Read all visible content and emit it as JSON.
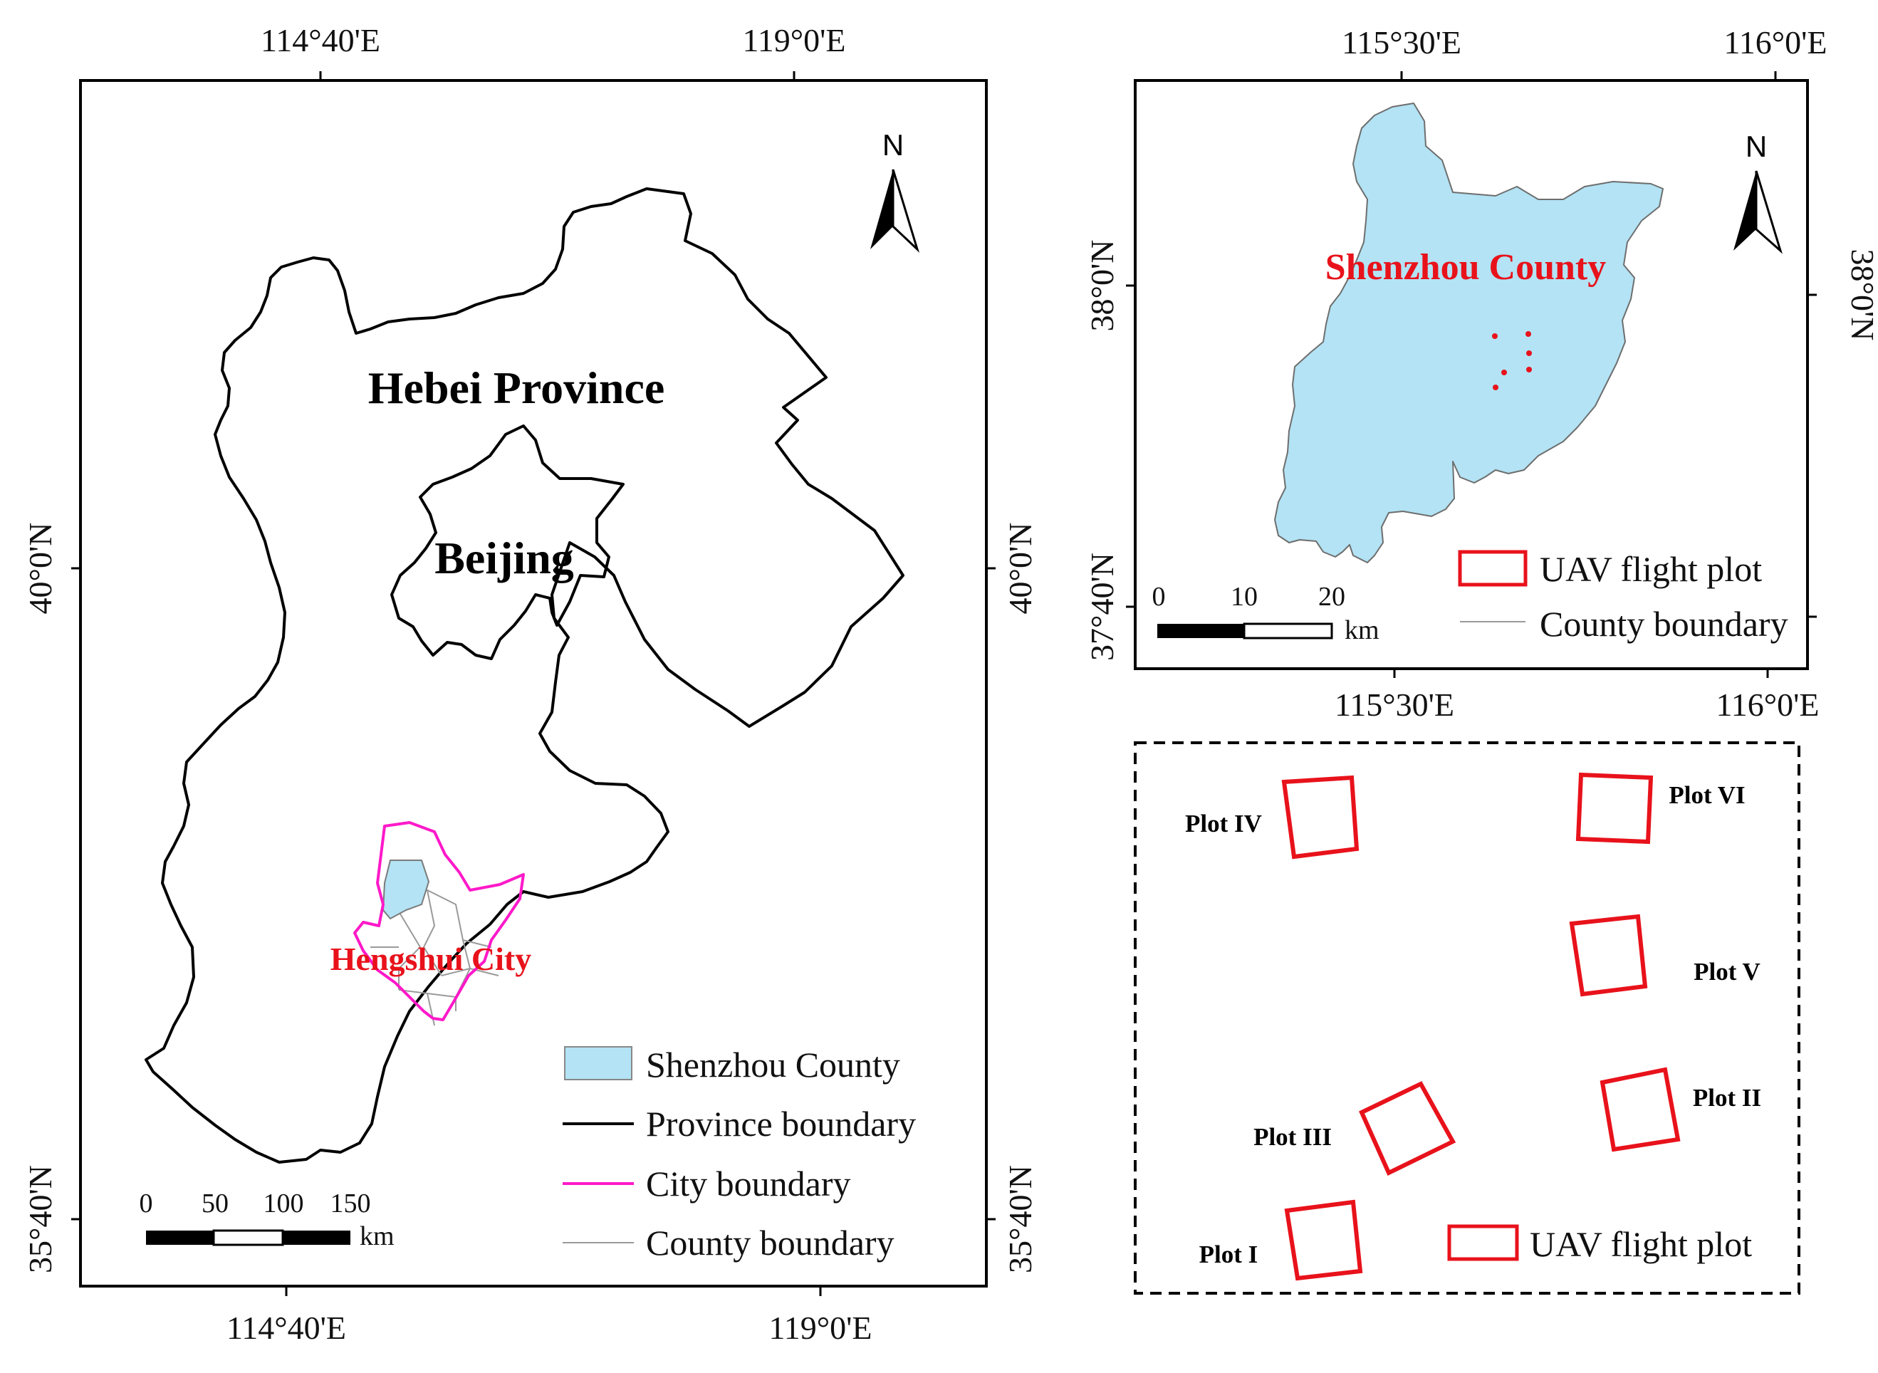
{
  "left_map": {
    "top_ticks": [
      "114°40'E",
      "119°0'E"
    ],
    "bottom_ticks": [
      "114°40'E",
      "119°0'E"
    ],
    "left_ticks": [
      "40°0'N",
      "35°40'N"
    ],
    "right_ticks": [
      "40°0'N",
      "35°40'N"
    ],
    "labels": {
      "province": "Hebei Province",
      "capital": "Beijing",
      "city": "Hengshui City"
    },
    "north_arrow": "N",
    "scale_bar": {
      "ticks": [
        "0",
        "50",
        "100",
        "150"
      ],
      "unit": "km"
    },
    "legend": [
      {
        "label": "Shenzhou County",
        "kind": "fill",
        "color": "#b3e3f4"
      },
      {
        "label": "Province boundary",
        "kind": "line",
        "color": "#000000"
      },
      {
        "label": "City boundary",
        "kind": "line",
        "color": "#ff19c9"
      },
      {
        "label": "County boundary",
        "kind": "line",
        "color": "#9a9a9a"
      }
    ]
  },
  "right_map": {
    "top_ticks": [
      "115°30'E",
      "116°0'E"
    ],
    "bottom_ticks": [
      "115°30'E",
      "116°0'E"
    ],
    "left_ticks": [
      "38°0'N",
      "37°40'N"
    ],
    "right_ticks": [
      "38°0'N"
    ],
    "labels": {
      "county": "Shenzhou County"
    },
    "north_arrow": "N",
    "scale_bar": {
      "ticks": [
        "0",
        "10",
        "20"
      ],
      "unit": "km"
    },
    "legend": [
      {
        "label": "UAV flight plot",
        "kind": "box",
        "color": "#e8121b"
      },
      {
        "label": "County boundary",
        "kind": "line",
        "color": "#9a9a9a"
      }
    ]
  },
  "plots_panel": {
    "plots": [
      "Plot IV",
      "Plot VI",
      "Plot V",
      "Plot II",
      "Plot III",
      "Plot I"
    ],
    "legend": {
      "label": "UAV flight plot",
      "color": "#e8121b"
    }
  },
  "colors": {
    "shenzhou_fill": "#b3e3f4",
    "city_boundary": "#ff19c9",
    "plot_red": "#e8121b",
    "label_red": "#e8121b"
  }
}
